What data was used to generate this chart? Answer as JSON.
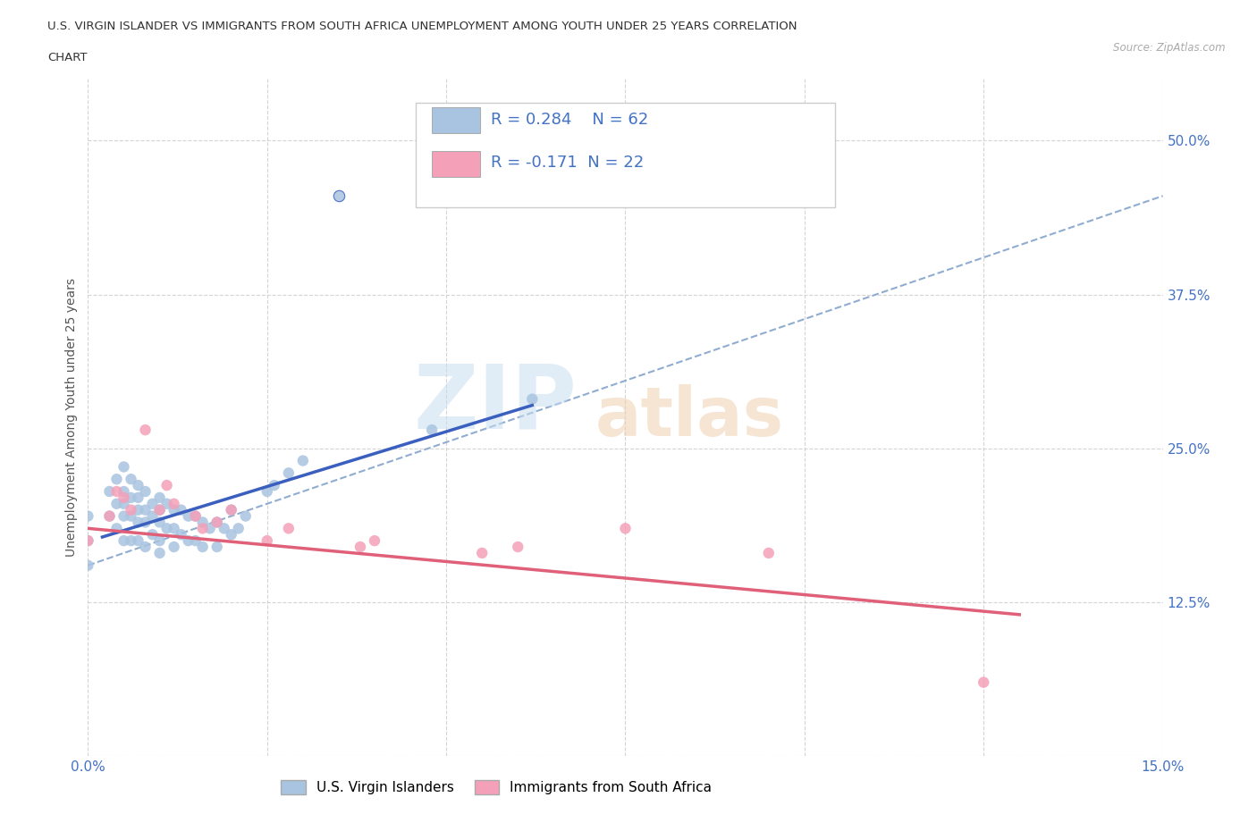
{
  "title_line1": "U.S. VIRGIN ISLANDER VS IMMIGRANTS FROM SOUTH AFRICA UNEMPLOYMENT AMONG YOUTH UNDER 25 YEARS CORRELATION",
  "title_line2": "CHART",
  "source": "Source: ZipAtlas.com",
  "ylabel": "Unemployment Among Youth under 25 years",
  "xlim": [
    0.0,
    0.15
  ],
  "ylim": [
    0.0,
    0.55
  ],
  "group1_color": "#a8c4e0",
  "group2_color": "#f4a0b8",
  "group1_line_color": "#3a5fbf",
  "group2_line_color": "#e0607a",
  "trendline_color": "#a0b8d0",
  "legend_label1": "U.S. Virgin Islanders",
  "legend_label2": "Immigrants from South Africa",
  "R1": 0.284,
  "N1": 62,
  "R2": -0.171,
  "N2": 22,
  "group1_x": [
    0.0,
    0.0,
    0.0,
    0.003,
    0.003,
    0.004,
    0.004,
    0.004,
    0.005,
    0.005,
    0.005,
    0.005,
    0.005,
    0.006,
    0.006,
    0.006,
    0.006,
    0.007,
    0.007,
    0.007,
    0.007,
    0.007,
    0.008,
    0.008,
    0.008,
    0.008,
    0.009,
    0.009,
    0.009,
    0.01,
    0.01,
    0.01,
    0.01,
    0.01,
    0.011,
    0.011,
    0.012,
    0.012,
    0.012,
    0.013,
    0.013,
    0.014,
    0.014,
    0.015,
    0.015,
    0.016,
    0.016,
    0.017,
    0.018,
    0.018,
    0.019,
    0.02,
    0.02,
    0.021,
    0.022,
    0.025,
    0.026,
    0.028,
    0.03,
    0.048,
    0.062
  ],
  "group1_y": [
    0.195,
    0.175,
    0.155,
    0.215,
    0.195,
    0.225,
    0.205,
    0.185,
    0.235,
    0.215,
    0.205,
    0.195,
    0.175,
    0.225,
    0.21,
    0.195,
    0.175,
    0.22,
    0.21,
    0.2,
    0.19,
    0.175,
    0.215,
    0.2,
    0.19,
    0.17,
    0.205,
    0.195,
    0.18,
    0.21,
    0.2,
    0.19,
    0.175,
    0.165,
    0.205,
    0.185,
    0.2,
    0.185,
    0.17,
    0.2,
    0.18,
    0.195,
    0.175,
    0.195,
    0.175,
    0.19,
    0.17,
    0.185,
    0.19,
    0.17,
    0.185,
    0.2,
    0.18,
    0.185,
    0.195,
    0.215,
    0.22,
    0.23,
    0.24,
    0.265,
    0.29
  ],
  "group1_outlier_x": [
    0.035
  ],
  "group1_outlier_y": [
    0.455
  ],
  "group2_x": [
    0.0,
    0.003,
    0.004,
    0.005,
    0.006,
    0.008,
    0.01,
    0.011,
    0.012,
    0.015,
    0.016,
    0.018,
    0.02,
    0.025,
    0.028,
    0.038,
    0.04,
    0.055,
    0.06,
    0.075,
    0.095,
    0.125
  ],
  "group2_y": [
    0.175,
    0.195,
    0.215,
    0.21,
    0.2,
    0.265,
    0.2,
    0.22,
    0.205,
    0.195,
    0.185,
    0.19,
    0.2,
    0.175,
    0.185,
    0.17,
    0.175,
    0.165,
    0.17,
    0.185,
    0.165,
    0.06
  ],
  "trendline_x": [
    0.0,
    0.15
  ],
  "trendline_y": [
    0.155,
    0.455
  ]
}
